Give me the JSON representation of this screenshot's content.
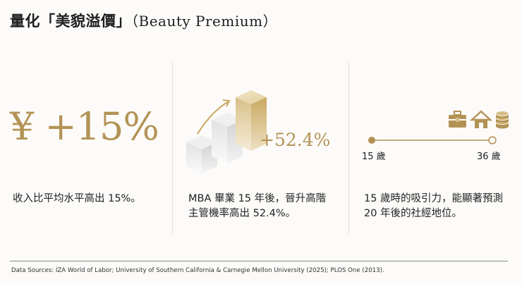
{
  "title": {
    "zh": "量化「美貌溢價」",
    "en": "（Beauty Premium）"
  },
  "stats": [
    {
      "value": "¥ +15%",
      "description": "收入比平均水平高出 15%。"
    },
    {
      "value": "+52.4%",
      "description_lines": [
        "MBA 畢業 15 年後，晉升高階",
        "主管機率高出 52.4%。"
      ]
    },
    {
      "timeline_start": "15 歲",
      "timeline_end": "36 歲",
      "icons": [
        "briefcase-icon",
        "house-icon",
        "coins-icon"
      ],
      "description_lines": [
        "15 歲時的吸引力，能顯著預測",
        "20 年後的社經地位。"
      ]
    }
  ],
  "colors": {
    "gold": "#b39355",
    "gold_light": "#e8d9b4",
    "gray_cube": "#e4e4e4"
  },
  "sources": "Data Sources: IZA World of Labor; University of Southern California & Carnegie Mellon University (2025); PLOS One (2013)."
}
